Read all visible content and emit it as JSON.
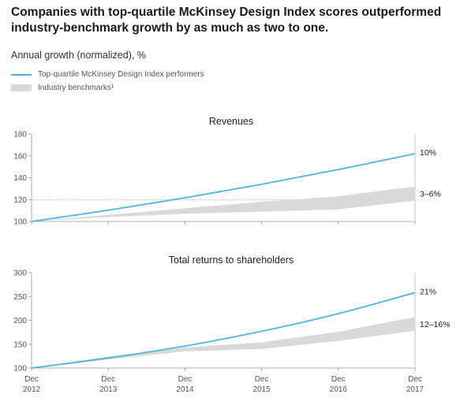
{
  "title_lines": [
    "Companies with top-quartile McKinsey Design Index scores outperformed",
    "industry-benchmark growth by as much as two to one."
  ],
  "unit_label": "Annual growth (normalized), %",
  "legend": {
    "line_label": "Top-quartile McKinsey Design Index performers",
    "band_label": "Industry benchmarks¹"
  },
  "colors": {
    "line": "#4fb3e0",
    "band": "#d9d9d9"
  },
  "x_tick_labels": [
    {
      "top": "Dec",
      "bottom": "2012"
    },
    {
      "top": "Dec",
      "bottom": "2013"
    },
    {
      "top": "Dec",
      "bottom": "2014"
    },
    {
      "top": "Dec",
      "bottom": "2015"
    },
    {
      "top": "Dec",
      "bottom": "2016"
    },
    {
      "top": "Dec",
      "bottom": "2017"
    }
  ],
  "chart_data": [
    {
      "type": "area",
      "title": "Revenues",
      "x": [
        2012,
        2013,
        2014,
        2015,
        2016,
        2017
      ],
      "ylim": [
        100,
        180
      ],
      "yticks": [
        100,
        120,
        140,
        160,
        180
      ],
      "reference_line": 120,
      "series": [
        {
          "kind": "line",
          "values": [
            100,
            110.3,
            121.6,
            134,
            147.5,
            162
          ],
          "end_label": "10%"
        },
        {
          "kind": "band",
          "lower": [
            100,
            104,
            107,
            109,
            111,
            119
          ],
          "upper": [
            100,
            106,
            112,
            118,
            123,
            132
          ],
          "end_label": "3–6%"
        }
      ],
      "grid": false
    },
    {
      "type": "area",
      "title": "Total returns to shareholders",
      "x": [
        2012,
        2013,
        2014,
        2015,
        2016,
        2017
      ],
      "ylim": [
        100,
        300
      ],
      "yticks": [
        100,
        150,
        200,
        250,
        300
      ],
      "series": [
        {
          "kind": "line",
          "values": [
            100,
            121,
            146,
            177,
            214,
            258
          ],
          "end_label": "21%"
        },
        {
          "kind": "band",
          "lower": [
            100,
            118,
            135,
            140,
            157,
            178
          ],
          "upper": [
            100,
            124,
            143,
            154,
            176,
            207
          ],
          "end_label": "12–16%"
        }
      ],
      "grid": false
    }
  ]
}
